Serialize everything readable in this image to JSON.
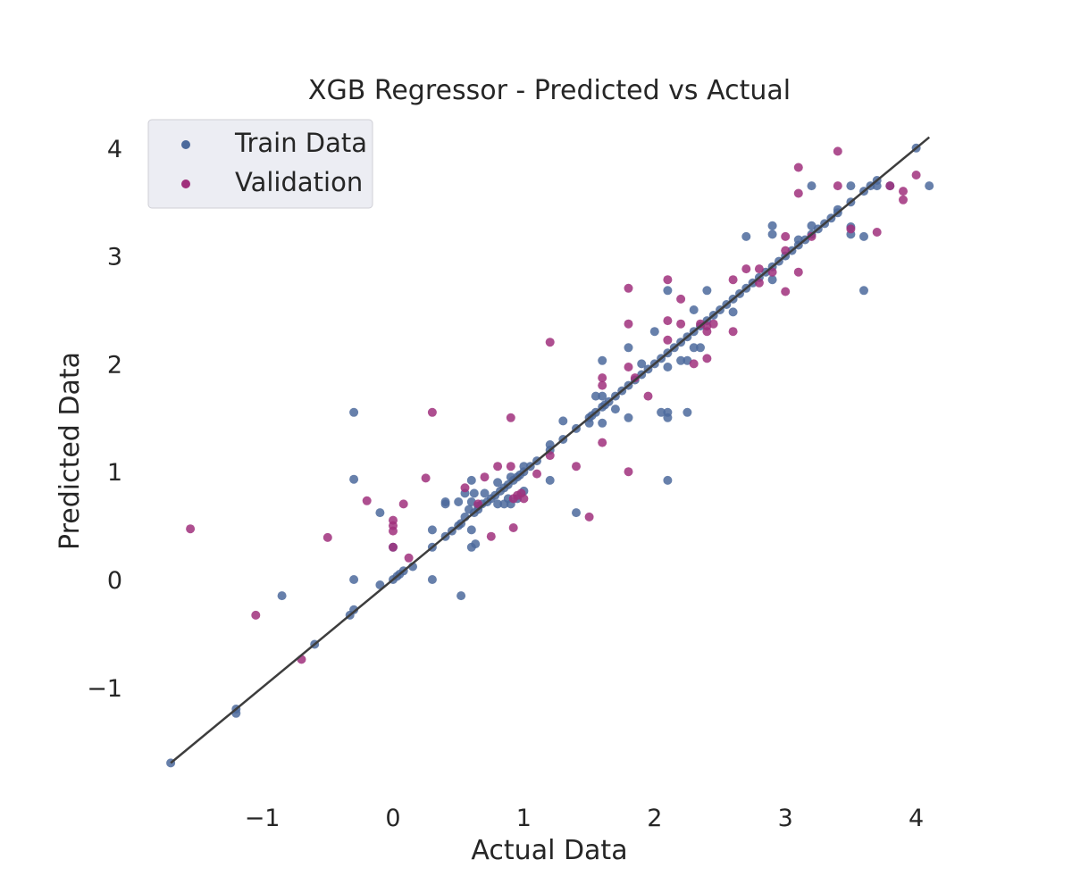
{
  "chart_data": {
    "type": "scatter",
    "title": "XGB Regressor - Predicted vs Actual",
    "xlabel": "Actual Data",
    "ylabel": "Predicted Data",
    "xlim": [
      -1.85,
      4.2
    ],
    "ylim": [
      -2.0,
      4.3
    ],
    "x_ticks": [
      -1,
      0,
      1,
      2,
      3,
      4
    ],
    "y_ticks": [
      -1,
      0,
      1,
      2,
      3,
      4
    ],
    "x_tick_labels": [
      "−1",
      "0",
      "1",
      "2",
      "3",
      "4"
    ],
    "y_tick_labels": [
      "−1",
      "0",
      "1",
      "2",
      "3",
      "4"
    ],
    "grid": false,
    "legend": {
      "placement": "top-left",
      "entries": [
        "Train Data",
        "Validation"
      ]
    },
    "colors": {
      "train": "#4c6a9c",
      "validation": "#a0307c",
      "line": "#3d3d3d",
      "legend_bg": "#ecedf3",
      "legend_border": "#cfcfd6",
      "text": "#262626"
    },
    "reference_line": {
      "x": [
        -1.7,
        4.1
      ],
      "y": [
        -1.7,
        4.1
      ]
    },
    "series": [
      {
        "name": "Train Data",
        "points": [
          [
            -1.7,
            -1.7
          ],
          [
            -1.2,
            -1.2
          ],
          [
            -1.2,
            -1.24
          ],
          [
            -0.85,
            -0.15
          ],
          [
            -0.6,
            -0.6
          ],
          [
            -0.33,
            -0.33
          ],
          [
            -0.3,
            -0.28
          ],
          [
            -0.3,
            0.0
          ],
          [
            -0.3,
            0.93
          ],
          [
            -0.3,
            1.55
          ],
          [
            -0.1,
            0.62
          ],
          [
            -0.1,
            -0.05
          ],
          [
            0.0,
            0.0
          ],
          [
            0.0,
            0.3
          ],
          [
            0.03,
            0.03
          ],
          [
            0.05,
            0.05
          ],
          [
            0.08,
            0.08
          ],
          [
            0.15,
            0.12
          ],
          [
            0.3,
            0.3
          ],
          [
            0.3,
            0.46
          ],
          [
            0.3,
            0.0
          ],
          [
            0.4,
            0.4
          ],
          [
            0.45,
            0.45
          ],
          [
            0.4,
            0.7
          ],
          [
            0.4,
            0.72
          ],
          [
            0.5,
            0.5
          ],
          [
            0.5,
            0.72
          ],
          [
            0.52,
            0.52
          ],
          [
            0.52,
            -0.15
          ],
          [
            0.55,
            0.58
          ],
          [
            0.55,
            0.8
          ],
          [
            0.58,
            0.65
          ],
          [
            0.6,
            0.3
          ],
          [
            0.6,
            0.46
          ],
          [
            0.6,
            0.72
          ],
          [
            0.6,
            0.92
          ],
          [
            0.62,
            0.62
          ],
          [
            0.62,
            0.8
          ],
          [
            0.63,
            0.33
          ],
          [
            0.65,
            0.68
          ],
          [
            0.65,
            0.65
          ],
          [
            0.68,
            0.7
          ],
          [
            0.7,
            0.8
          ],
          [
            0.72,
            0.72
          ],
          [
            0.75,
            0.75
          ],
          [
            0.78,
            0.78
          ],
          [
            0.8,
            0.7
          ],
          [
            0.8,
            0.9
          ],
          [
            0.82,
            0.82
          ],
          [
            0.85,
            0.7
          ],
          [
            0.85,
            0.85
          ],
          [
            0.88,
            0.75
          ],
          [
            0.88,
            0.88
          ],
          [
            0.9,
            0.7
          ],
          [
            0.9,
            0.95
          ],
          [
            0.92,
            0.92
          ],
          [
            0.95,
            0.75
          ],
          [
            0.95,
            0.95
          ],
          [
            0.97,
            0.97
          ],
          [
            1.0,
            1.0
          ],
          [
            1.0,
            0.82
          ],
          [
            1.0,
            1.05
          ],
          [
            1.05,
            1.05
          ],
          [
            1.1,
            1.1
          ],
          [
            1.2,
            1.2
          ],
          [
            1.2,
            1.25
          ],
          [
            1.2,
            0.92
          ],
          [
            1.3,
            1.3
          ],
          [
            1.3,
            1.47
          ],
          [
            1.4,
            1.4
          ],
          [
            1.4,
            0.62
          ],
          [
            1.5,
            1.5
          ],
          [
            1.5,
            1.45
          ],
          [
            1.52,
            1.52
          ],
          [
            1.55,
            1.55
          ],
          [
            1.55,
            1.7
          ],
          [
            1.6,
            1.6
          ],
          [
            1.6,
            1.45
          ],
          [
            1.6,
            1.7
          ],
          [
            1.6,
            2.03
          ],
          [
            1.62,
            1.62
          ],
          [
            1.65,
            1.65
          ],
          [
            1.7,
            1.58
          ],
          [
            1.7,
            1.7
          ],
          [
            1.75,
            1.75
          ],
          [
            1.8,
            1.8
          ],
          [
            1.8,
            1.5
          ],
          [
            1.8,
            2.15
          ],
          [
            1.85,
            1.85
          ],
          [
            1.9,
            1.9
          ],
          [
            1.9,
            2.0
          ],
          [
            1.95,
            1.95
          ],
          [
            2.0,
            2.0
          ],
          [
            2.0,
            2.3
          ],
          [
            2.05,
            2.05
          ],
          [
            2.05,
            1.55
          ],
          [
            2.1,
            2.1
          ],
          [
            2.1,
            1.97
          ],
          [
            2.1,
            1.5
          ],
          [
            2.1,
            1.55
          ],
          [
            2.1,
            0.92
          ],
          [
            2.1,
            2.68
          ],
          [
            2.15,
            2.15
          ],
          [
            2.2,
            2.2
          ],
          [
            2.2,
            2.03
          ],
          [
            2.25,
            2.25
          ],
          [
            2.25,
            2.03
          ],
          [
            2.25,
            1.55
          ],
          [
            2.3,
            2.3
          ],
          [
            2.3,
            2.5
          ],
          [
            2.3,
            2.15
          ],
          [
            2.35,
            2.35
          ],
          [
            2.35,
            2.15
          ],
          [
            2.4,
            2.4
          ],
          [
            2.4,
            2.68
          ],
          [
            2.45,
            2.45
          ],
          [
            2.5,
            2.5
          ],
          [
            2.55,
            2.55
          ],
          [
            2.6,
            2.6
          ],
          [
            2.6,
            2.48
          ],
          [
            2.65,
            2.65
          ],
          [
            2.7,
            2.7
          ],
          [
            2.7,
            3.18
          ],
          [
            2.75,
            2.75
          ],
          [
            2.8,
            2.8
          ],
          [
            2.85,
            2.85
          ],
          [
            2.9,
            2.9
          ],
          [
            2.9,
            3.2
          ],
          [
            2.9,
            3.28
          ],
          [
            2.9,
            2.78
          ],
          [
            2.95,
            2.95
          ],
          [
            3.0,
            3.0
          ],
          [
            3.05,
            3.05
          ],
          [
            3.1,
            3.1
          ],
          [
            3.1,
            3.15
          ],
          [
            3.15,
            3.15
          ],
          [
            3.2,
            3.2
          ],
          [
            3.2,
            3.28
          ],
          [
            3.2,
            3.65
          ],
          [
            3.25,
            3.25
          ],
          [
            3.3,
            3.3
          ],
          [
            3.35,
            3.35
          ],
          [
            3.4,
            3.4
          ],
          [
            3.4,
            3.43
          ],
          [
            3.5,
            3.5
          ],
          [
            3.5,
            3.2
          ],
          [
            3.5,
            3.27
          ],
          [
            3.5,
            3.65
          ],
          [
            3.6,
            3.6
          ],
          [
            3.6,
            2.68
          ],
          [
            3.6,
            3.18
          ],
          [
            3.65,
            3.65
          ],
          [
            3.7,
            3.7
          ],
          [
            3.7,
            3.65
          ],
          [
            3.8,
            3.65
          ],
          [
            4.0,
            4.0
          ],
          [
            4.1,
            3.65
          ]
        ]
      },
      {
        "name": "Validation",
        "points": [
          [
            -1.55,
            0.47
          ],
          [
            -1.05,
            -0.33
          ],
          [
            -0.7,
            -0.74
          ],
          [
            -0.5,
            0.39
          ],
          [
            -0.2,
            0.73
          ],
          [
            0.0,
            0.55
          ],
          [
            0.0,
            0.5
          ],
          [
            0.0,
            0.45
          ],
          [
            0.0,
            0.3
          ],
          [
            0.08,
            0.7
          ],
          [
            0.12,
            0.2
          ],
          [
            0.25,
            0.94
          ],
          [
            0.3,
            1.55
          ],
          [
            0.55,
            0.85
          ],
          [
            0.65,
            0.7
          ],
          [
            0.7,
            0.95
          ],
          [
            0.75,
            0.4
          ],
          [
            0.8,
            1.05
          ],
          [
            0.9,
            1.5
          ],
          [
            0.9,
            1.05
          ],
          [
            0.92,
            0.75
          ],
          [
            0.92,
            0.48
          ],
          [
            0.95,
            0.78
          ],
          [
            0.98,
            0.8
          ],
          [
            1.0,
            0.75
          ],
          [
            1.1,
            0.98
          ],
          [
            1.2,
            1.15
          ],
          [
            1.2,
            2.2
          ],
          [
            1.4,
            1.05
          ],
          [
            1.5,
            0.58
          ],
          [
            1.6,
            1.27
          ],
          [
            1.6,
            1.8
          ],
          [
            1.6,
            1.87
          ],
          [
            1.8,
            2.7
          ],
          [
            1.8,
            1.97
          ],
          [
            1.8,
            1.0
          ],
          [
            1.8,
            2.37
          ],
          [
            1.85,
            1.87
          ],
          [
            1.95,
            1.7
          ],
          [
            2.1,
            2.4
          ],
          [
            2.1,
            2.78
          ],
          [
            2.1,
            2.22
          ],
          [
            2.2,
            2.6
          ],
          [
            2.2,
            2.37
          ],
          [
            2.3,
            2.0
          ],
          [
            2.35,
            2.37
          ],
          [
            2.4,
            2.3
          ],
          [
            2.4,
            2.05
          ],
          [
            2.4,
            2.35
          ],
          [
            2.45,
            2.37
          ],
          [
            2.6,
            2.78
          ],
          [
            2.6,
            2.3
          ],
          [
            2.7,
            2.88
          ],
          [
            2.8,
            2.75
          ],
          [
            2.8,
            2.88
          ],
          [
            2.9,
            2.85
          ],
          [
            3.0,
            3.18
          ],
          [
            3.0,
            2.67
          ],
          [
            3.0,
            3.05
          ],
          [
            3.1,
            3.82
          ],
          [
            3.1,
            3.58
          ],
          [
            3.1,
            2.85
          ],
          [
            3.2,
            3.18
          ],
          [
            3.4,
            3.97
          ],
          [
            3.4,
            3.65
          ],
          [
            3.5,
            3.25
          ],
          [
            3.7,
            3.22
          ],
          [
            3.8,
            3.65
          ],
          [
            3.9,
            3.52
          ],
          [
            3.9,
            3.6
          ],
          [
            4.0,
            3.75
          ]
        ]
      }
    ]
  }
}
